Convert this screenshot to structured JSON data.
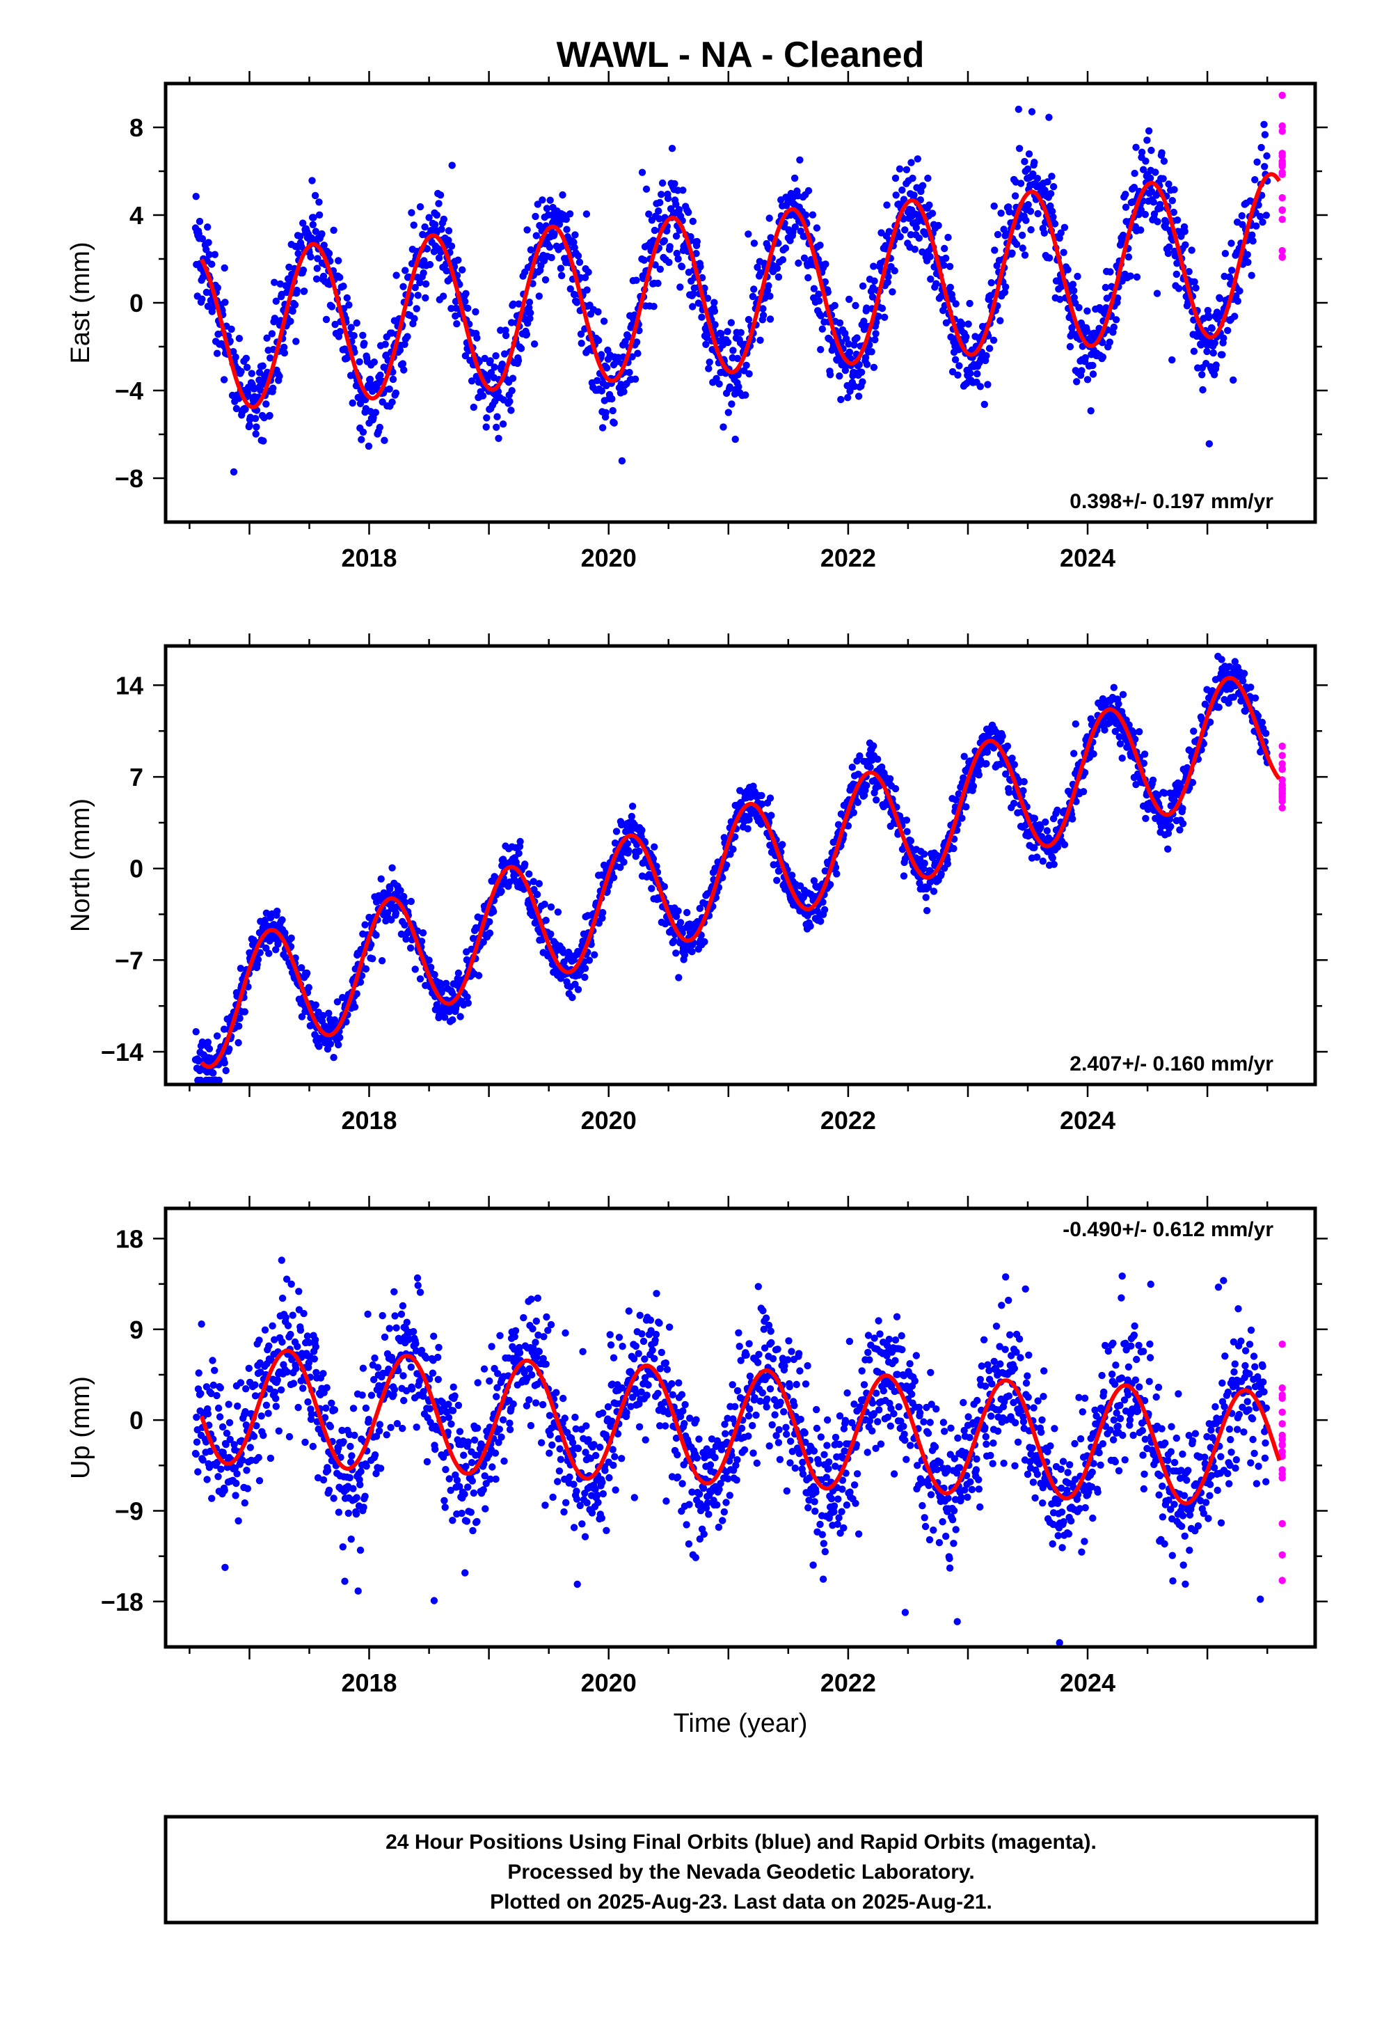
{
  "chart_data": {
    "type": "scatter",
    "title": "WAWL  - NA - Cleaned",
    "xlabel": "Time (year)",
    "xlim": [
      2016.3,
      2025.9
    ],
    "x_ticks": [
      2018,
      2020,
      2022,
      2024
    ],
    "colors": {
      "final_orbits": "#0000ff",
      "rapid_orbits": "#ff00ff",
      "model_fit": "#ff0000"
    },
    "panels": [
      {
        "ylabel": "East (mm)",
        "ylim": [
          -10,
          10
        ],
        "yticks": [
          -8,
          -4,
          0,
          4,
          8
        ],
        "rate_label": "0.398+/- 0.197 mm/yr",
        "rate_position": "bottom-right",
        "model": {
          "t0": 2016.6,
          "end": 2025.6,
          "offset": -1.31,
          "trend": 0.398,
          "annual_sin": -0.7,
          "annual_cos": -3.55,
          "noise": 1.05
        },
        "final_range": [
          2016.55,
          2025.5
        ],
        "rapid_range": [
          2025.52,
          2025.63
        ]
      },
      {
        "ylabel": "North (mm)",
        "ylim": [
          -16.5,
          17
        ],
        "yticks": [
          -14,
          -7,
          0,
          7,
          14
        ],
        "rate_label": "2.407+/- 0.160 mm/yr",
        "rate_position": "bottom-right",
        "model": {
          "t0": 2016.6,
          "end": 2025.6,
          "offset": -10.7,
          "trend": 2.407,
          "annual_sin": 4.1,
          "annual_cos": 2.1,
          "noise": 0.9
        },
        "final_range": [
          2016.55,
          2025.5
        ],
        "rapid_range": [
          2025.52,
          2025.63
        ]
      },
      {
        "ylabel": "Up (mm)",
        "ylim": [
          -22.5,
          21
        ],
        "yticks": [
          -18,
          -9,
          0,
          9,
          18
        ],
        "rate_label": "-0.490+/- 0.612 mm/yr",
        "rate_position": "top-right",
        "model": {
          "t0": 2016.6,
          "end": 2025.6,
          "offset": 1.5,
          "trend": -0.49,
          "annual_sin": 5.2,
          "annual_cos": -2.4,
          "noise": 3.4
        },
        "final_range": [
          2016.55,
          2025.5
        ],
        "rapid_range": [
          2025.52,
          2025.63
        ]
      }
    ],
    "footer": [
      "24 Hour Positions Using Final Orbits (blue) and Rapid Orbits (magenta).",
      "Processed by the Nevada Geodetic Laboratory.",
      "Plotted on 2025-Aug-23. Last data on 2025-Aug-21."
    ]
  }
}
